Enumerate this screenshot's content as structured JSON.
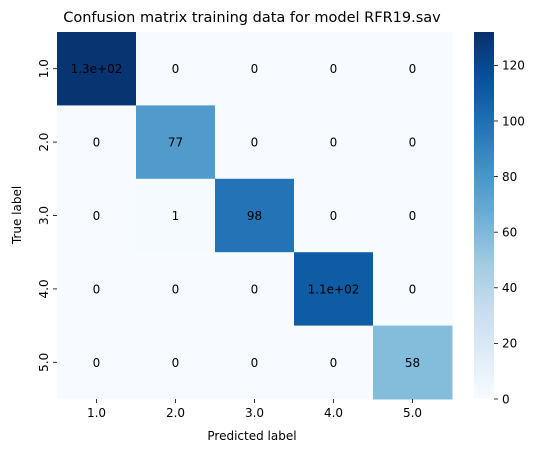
{
  "chart_data": {
    "type": "heatmap",
    "title": "Confusion matrix training data for model RFR19.sav",
    "xlabel": "Predicted label",
    "ylabel": "True label",
    "x_categories": [
      "1.0",
      "2.0",
      "3.0",
      "4.0",
      "5.0"
    ],
    "y_categories": [
      "1.0",
      "2.0",
      "3.0",
      "4.0",
      "5.0"
    ],
    "values": [
      [
        130,
        0,
        0,
        0,
        0
      ],
      [
        0,
        77,
        0,
        0,
        0
      ],
      [
        0,
        1,
        98,
        0,
        0
      ],
      [
        0,
        0,
        0,
        110,
        0
      ],
      [
        0,
        0,
        0,
        0,
        58
      ]
    ],
    "annotations": [
      [
        "1.3e+02",
        "0",
        "0",
        "0",
        "0"
      ],
      [
        "0",
        "77",
        "0",
        "0",
        "0"
      ],
      [
        "0",
        "1",
        "98",
        "0",
        "0"
      ],
      [
        "0",
        "0",
        "0",
        "1.1e+02",
        "0"
      ],
      [
        "0",
        "0",
        "0",
        "0",
        "58"
      ]
    ],
    "colorbar": {
      "min": 0,
      "max": 132,
      "ticks": [
        "0",
        "20",
        "40",
        "60",
        "80",
        "100",
        "120"
      ],
      "tick_values": [
        0,
        20,
        40,
        60,
        80,
        100,
        120
      ]
    },
    "colormap": "Blues",
    "colors": {
      "low": "#f7fbff",
      "high": "#08306b",
      "text_dark": "#262626",
      "text_light": "#ffffff"
    },
    "grid": false
  }
}
